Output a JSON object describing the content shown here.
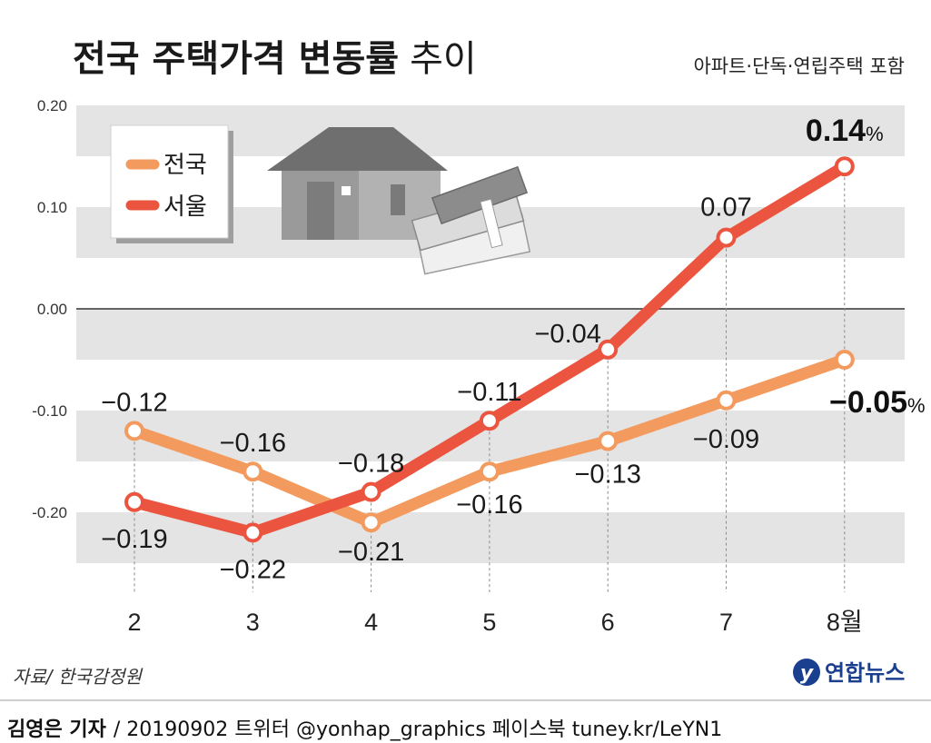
{
  "header": {
    "title_bold": "전국 주택가격 변동률",
    "title_light": "추이",
    "subtitle": "아파트·단독·연립주택 포함"
  },
  "source": "자료/ 한국감정원",
  "credit": {
    "name": "김영은 기자",
    "rest": "/ 20190902  트위터 @yonhap_graphics  페이스북 tuney.kr/LeYN1"
  },
  "logo": {
    "text": "연합뉴스"
  },
  "colors": {
    "national": "#f39a5e",
    "seoul": "#eb5540",
    "band": "#e4e4e4"
  },
  "chart_data": {
    "type": "line",
    "title": "전국 주택가격 변동률 추이",
    "subtitle": "아파트·단독·연립주택 포함",
    "x": [
      "2",
      "3",
      "4",
      "5",
      "6",
      "7",
      "8월"
    ],
    "ylim": [
      -0.25,
      0.2
    ],
    "yticks": [
      "0.20",
      "0.10",
      "0.00",
      "-0.10",
      "-0.20"
    ],
    "ytick_values": [
      0.2,
      0.1,
      0.0,
      -0.1,
      -0.2
    ],
    "legend_position": "top-left",
    "series": [
      {
        "name": "전국",
        "values": [
          -0.12,
          -0.16,
          -0.21,
          -0.16,
          -0.13,
          -0.09,
          -0.05
        ],
        "labels": [
          "−0.12",
          "−0.16",
          "−0.21",
          "−0.16",
          "−0.13",
          "−0.09",
          "−0.05"
        ]
      },
      {
        "name": "서울",
        "values": [
          -0.19,
          -0.22,
          -0.18,
          -0.11,
          -0.04,
          0.07,
          0.14
        ],
        "labels": [
          "−0.19",
          "−0.22",
          "−0.18",
          "−0.11",
          "−0.04",
          "0.07",
          "0.14"
        ]
      }
    ],
    "unit": "%"
  }
}
